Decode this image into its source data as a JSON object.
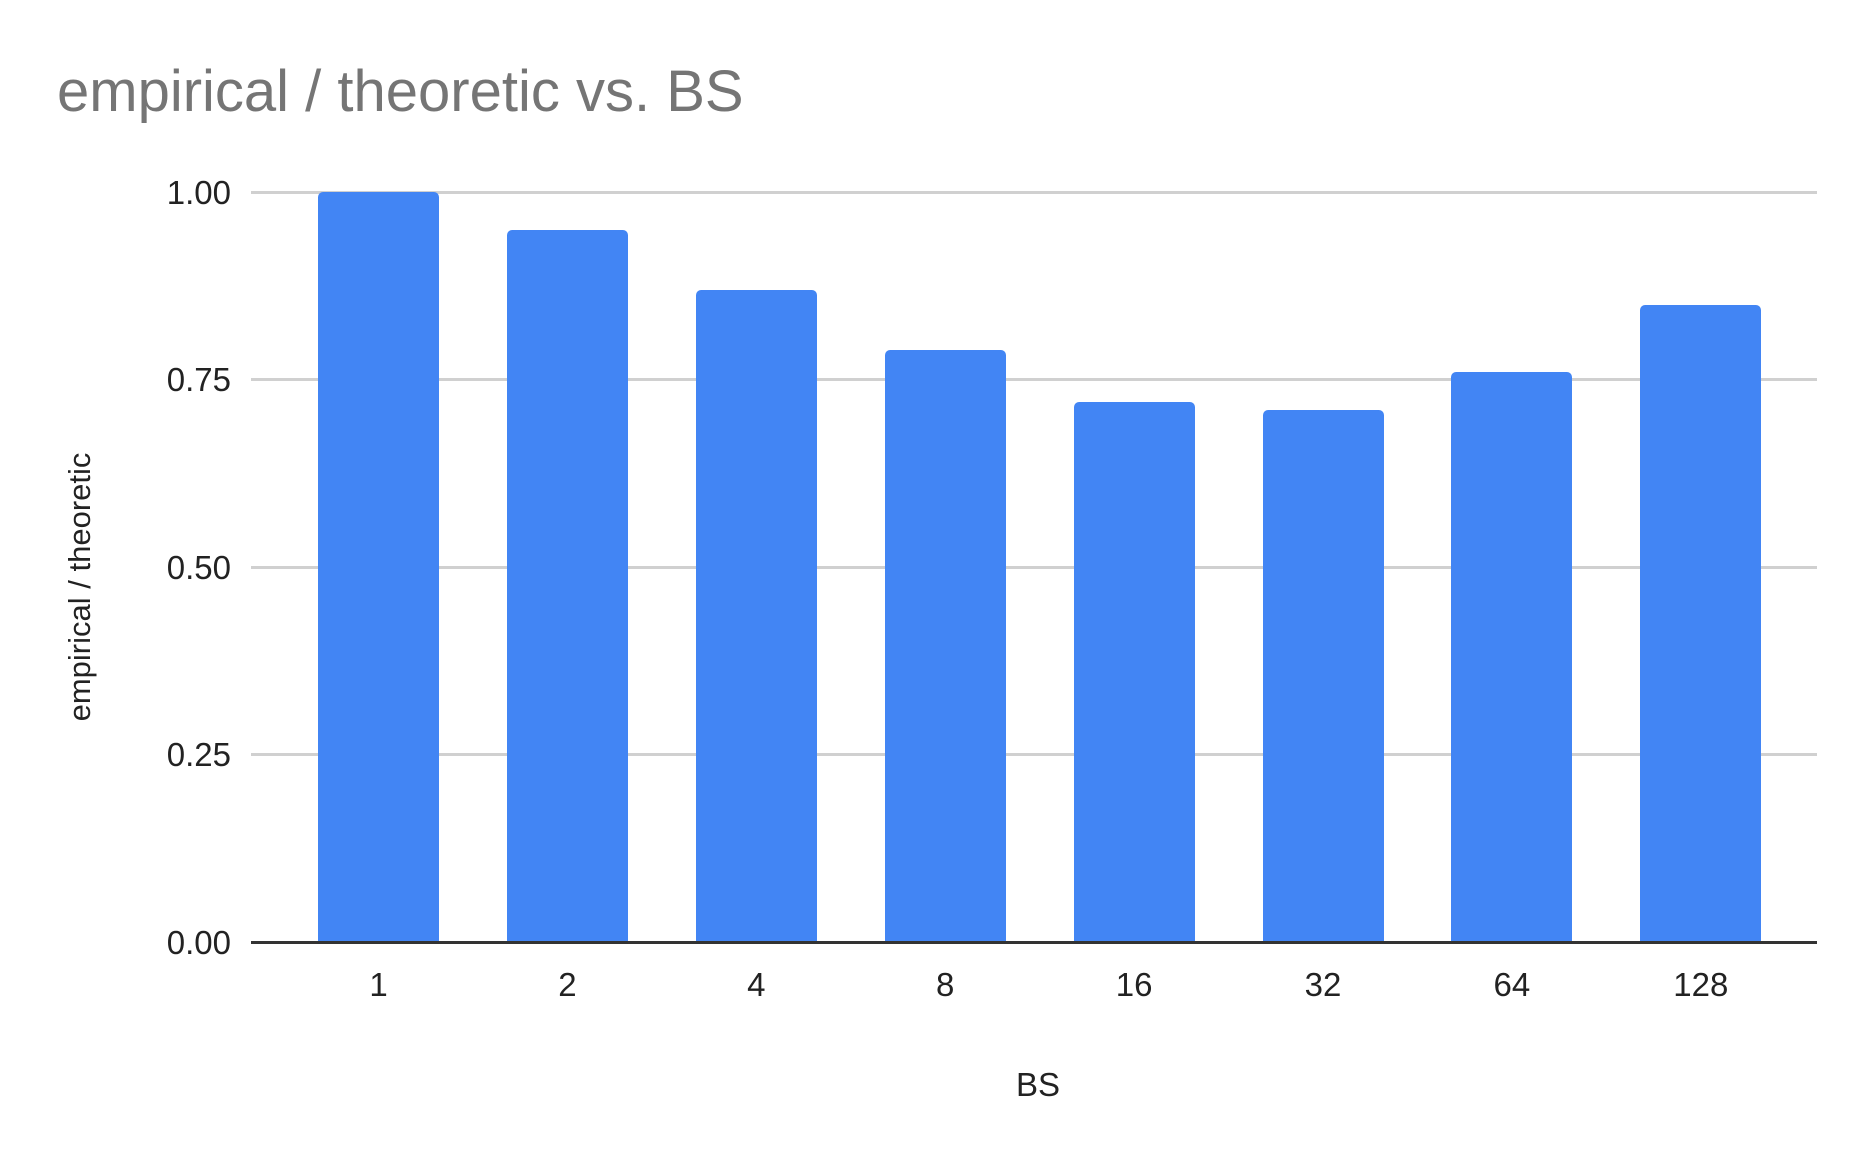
{
  "chart_data": {
    "type": "bar",
    "title": "empirical / theoretic vs. BS",
    "xlabel": "BS",
    "ylabel": "empirical / theoretic",
    "categories": [
      "1",
      "2",
      "4",
      "8",
      "16",
      "32",
      "64",
      "128"
    ],
    "values": [
      1.0,
      0.95,
      0.87,
      0.79,
      0.72,
      0.71,
      0.76,
      0.85
    ],
    "ylim": [
      0,
      1.0
    ],
    "yticks": [
      "0.00",
      "0.25",
      "0.50",
      "0.75",
      "1.00"
    ],
    "grid": true,
    "legend": "none",
    "bar_color": "#4285f4"
  }
}
